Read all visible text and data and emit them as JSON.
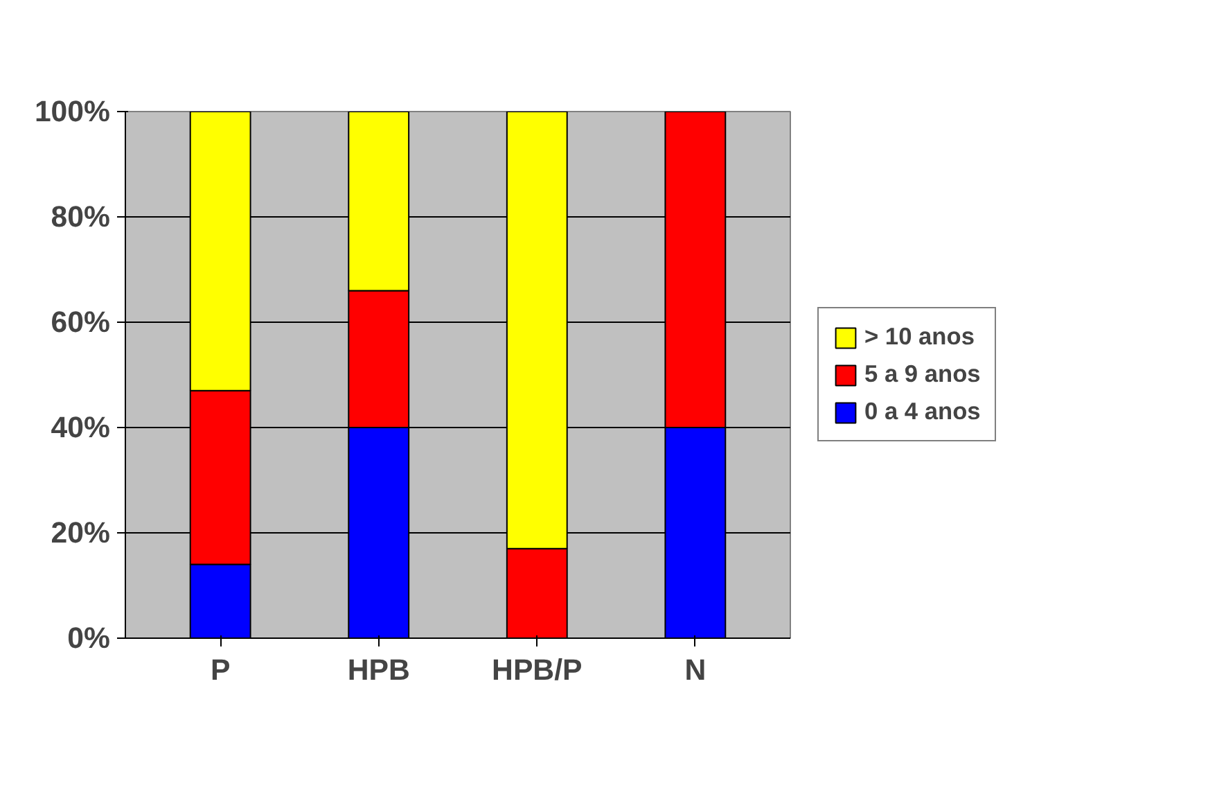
{
  "chart_data": {
    "type": "bar",
    "stacked": true,
    "categories": [
      "P",
      "HPB",
      "HPB/P",
      "N"
    ],
    "series": [
      {
        "name": "0 a 4 anos",
        "color": "#0000ff",
        "values": [
          14,
          40,
          0,
          40
        ]
      },
      {
        "name": "5 a 9 anos",
        "color": "#ff0000",
        "values": [
          33,
          26,
          17,
          60
        ]
      },
      {
        "name": "> 10 anos",
        "color": "#ffff00",
        "values": [
          53,
          34,
          83,
          0
        ]
      }
    ],
    "ylim": [
      0,
      100
    ],
    "yticks": [
      {
        "value": 0,
        "label": "0%"
      },
      {
        "value": 20,
        "label": "20%"
      },
      {
        "value": 40,
        "label": "40%"
      },
      {
        "value": 60,
        "label": "60%"
      },
      {
        "value": 80,
        "label": "80%"
      },
      {
        "value": 100,
        "label": "100%"
      }
    ],
    "grid": "y",
    "legend": "right"
  }
}
